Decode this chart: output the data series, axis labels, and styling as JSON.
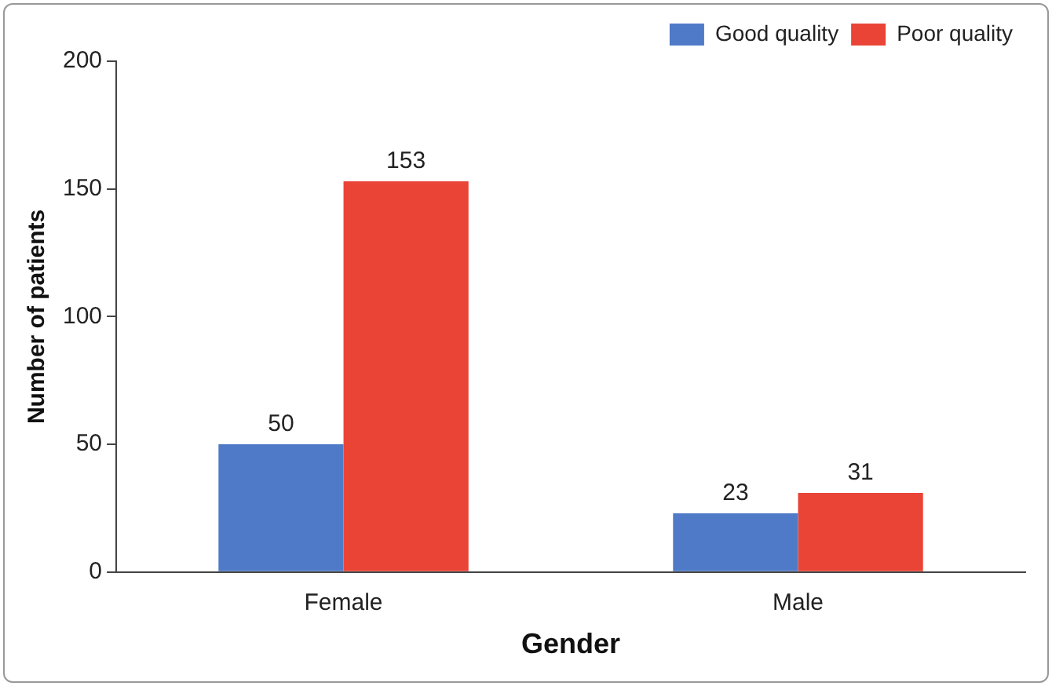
{
  "chart_data": {
    "type": "bar",
    "xlabel": "Gender",
    "ylabel": "Number of patients",
    "categories": [
      "Female",
      "Male"
    ],
    "series": [
      {
        "name": "Good quality",
        "color": "#4f7ac7",
        "values": [
          50,
          23
        ]
      },
      {
        "name": "Poor quality",
        "color": "#e94436",
        "values": [
          153,
          31
        ]
      }
    ],
    "ylim": [
      0,
      200
    ],
    "yticks": [
      0,
      50,
      100,
      150,
      200
    ],
    "grid": false,
    "legend": "top right",
    "data_labels": true
  }
}
